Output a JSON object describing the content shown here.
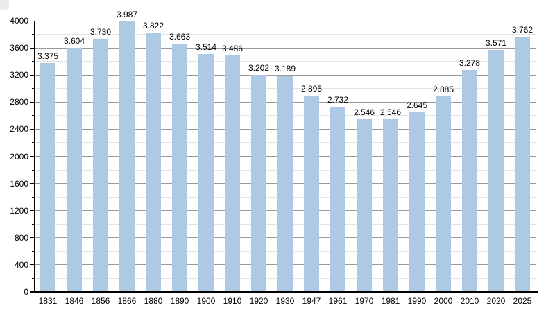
{
  "chart_data": {
    "type": "bar",
    "title": "",
    "xlabel": "",
    "ylabel": "",
    "categories": [
      "1831",
      "1846",
      "1856",
      "1866",
      "1880",
      "1890",
      "1900",
      "1910",
      "1920",
      "1930",
      "1947",
      "1961",
      "1970",
      "1981",
      "1990",
      "2000",
      "2010",
      "2020",
      "2025"
    ],
    "values": [
      3375,
      3604,
      3730,
      3987,
      3822,
      3663,
      3514,
      3486,
      3202,
      3189,
      2895,
      2732,
      2546,
      2546,
      2645,
      2885,
      3278,
      3571,
      3762
    ],
    "value_labels": [
      "3.375",
      "3.604",
      "3.730",
      "3.987",
      "3.822",
      "3.663",
      "3.514",
      "3.486",
      "3.202",
      "3.189",
      "2.895",
      "2.732",
      "2.546",
      "2.546",
      "2.645",
      "2.885",
      "3.278",
      "3.571",
      "3.762"
    ],
    "ylim": [
      0,
      4000
    ],
    "y_major_step": 400,
    "y_minor_step": 200,
    "y_tick_labels": [
      "0",
      "400",
      "800",
      "1200",
      "1600",
      "2000",
      "2400",
      "2800",
      "3200",
      "3600",
      "4000"
    ],
    "grid": true,
    "legend": false,
    "colors": {
      "bar": "#adc9e4",
      "grid_major": "#9a9a9a",
      "grid_minor": "#e3e3e3",
      "axis": "#000000",
      "text": "#000000",
      "background": "#ffffff"
    }
  }
}
